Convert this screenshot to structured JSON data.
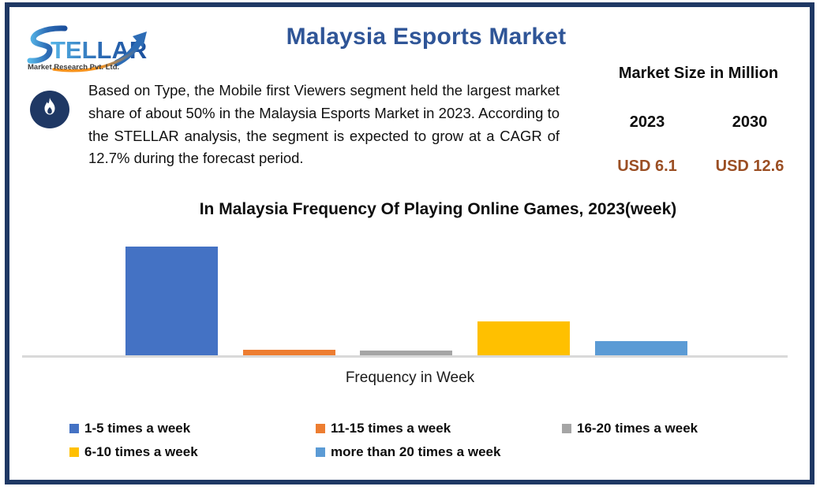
{
  "page": {
    "border_color": "#1F3864"
  },
  "logo": {
    "name": "STELLAR",
    "subtitle": "Market Research Pvt. Ltd.",
    "accent_blue": "#2D6CB5",
    "accent_cyan": "#3FA9F5",
    "accent_orange": "#F7931E"
  },
  "header": {
    "title": "Malaysia Esports Market",
    "title_color": "#2F5597"
  },
  "summary": {
    "text": "Based on Type, the Mobile first Viewers segment held the largest market share of about 50% in the Malaysia Esports Market in 2023. According to the STELLAR analysis, the segment is expected to grow at a CAGR of 12.7% during the forecast period.",
    "icon": "flame-icon",
    "icon_color": "#1F3864"
  },
  "market_size": {
    "heading": "Market Size in Million",
    "columns": [
      {
        "year": "2023",
        "value": "USD 6.1"
      },
      {
        "year": "2030",
        "value": "USD 12.6"
      }
    ],
    "value_color": "#9B4F24"
  },
  "chart_data": {
    "type": "bar",
    "title": "In Malaysia Frequency Of Playing Online Games, 2023(week)",
    "xlabel": "Frequency in Week",
    "ylabel": "",
    "categories": [
      "1-5 times a week",
      "11-15 times a week",
      "16-20 times a week",
      "6-10 times a week",
      "more than 20 times a week"
    ],
    "values": [
      50,
      2.5,
      2,
      15.5,
      6.5
    ],
    "colors": [
      "#4472C4",
      "#ED7D31",
      "#A5A5A5",
      "#FFC000",
      "#5B9BD5"
    ],
    "ylim": [
      0,
      55
    ],
    "gridlines": false,
    "y_axis_visible": false,
    "axis_line_color": "#D9D9D9",
    "legend_position": "bottom"
  }
}
